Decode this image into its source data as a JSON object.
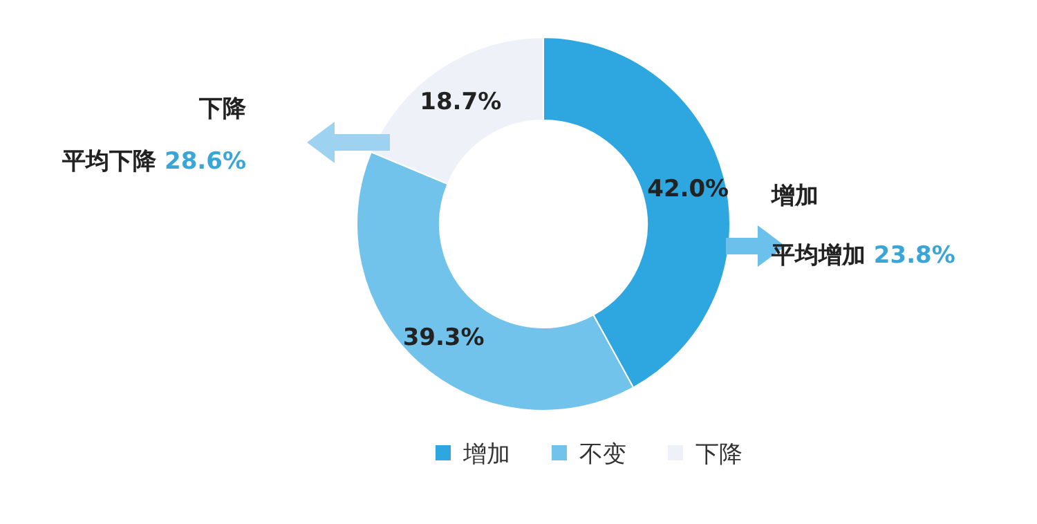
{
  "chart_data": {
    "type": "donut",
    "categories": [
      "增加",
      "不变",
      "下降"
    ],
    "values": [
      42.0,
      39.3,
      18.7
    ],
    "colors": [
      "#2ea7e0",
      "#72c3ec",
      "#eef2f8"
    ],
    "value_labels": [
      "42.0%",
      "39.3%",
      "18.7%"
    ],
    "legend": "bottom",
    "annotations": [
      "下降",
      "平均下降 28.6%",
      "增加",
      "平均增加 23.8%"
    ]
  }
}
